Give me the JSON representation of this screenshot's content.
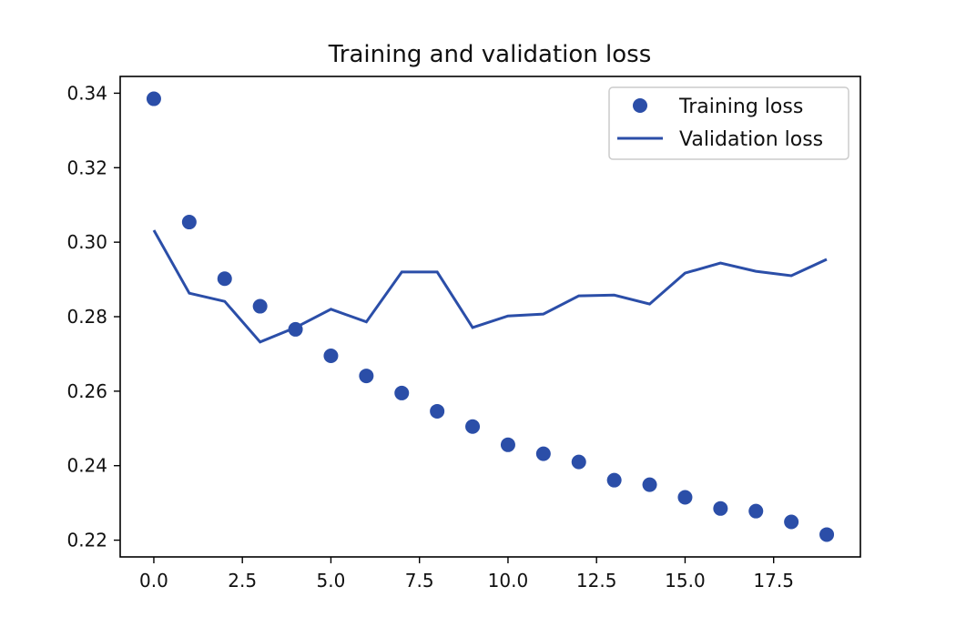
{
  "chart_data": {
    "type": "line",
    "title": "Training and validation loss",
    "xlabel": "",
    "ylabel": "",
    "xlim": [
      -0.95,
      19.95
    ],
    "ylim": [
      0.2155,
      0.3445
    ],
    "xticks": [
      0.0,
      2.5,
      5.0,
      7.5,
      10.0,
      12.5,
      15.0,
      17.5
    ],
    "xtick_labels": [
      "0.0",
      "2.5",
      "5.0",
      "7.5",
      "10.0",
      "12.5",
      "15.0",
      "17.5"
    ],
    "yticks": [
      0.22,
      0.24,
      0.26,
      0.28,
      0.3,
      0.32,
      0.34
    ],
    "ytick_labels": [
      "0.22",
      "0.24",
      "0.26",
      "0.28",
      "0.30",
      "0.32",
      "0.34"
    ],
    "grid": false,
    "legend_position": "top-right",
    "x": [
      0,
      1,
      2,
      3,
      4,
      5,
      6,
      7,
      8,
      9,
      10,
      11,
      12,
      13,
      14,
      15,
      16,
      17,
      18,
      19
    ],
    "series": [
      {
        "name": "Training loss",
        "style": "markers",
        "color": "#2b4ea8",
        "values": [
          0.3385,
          0.3054,
          0.2902,
          0.2828,
          0.2766,
          0.2695,
          0.2641,
          0.2595,
          0.2546,
          0.2505,
          0.2456,
          0.2432,
          0.241,
          0.2361,
          0.2349,
          0.2315,
          0.2285,
          0.2278,
          0.2249,
          0.2215
        ]
      },
      {
        "name": "Validation loss",
        "style": "line",
        "color": "#2b4ea8",
        "values": [
          0.3032,
          0.2863,
          0.2841,
          0.2732,
          0.2771,
          0.282,
          0.2786,
          0.292,
          0.292,
          0.2771,
          0.2802,
          0.2807,
          0.2856,
          0.2858,
          0.2834,
          0.2917,
          0.2944,
          0.2922,
          0.291,
          0.2954
        ]
      }
    ]
  }
}
